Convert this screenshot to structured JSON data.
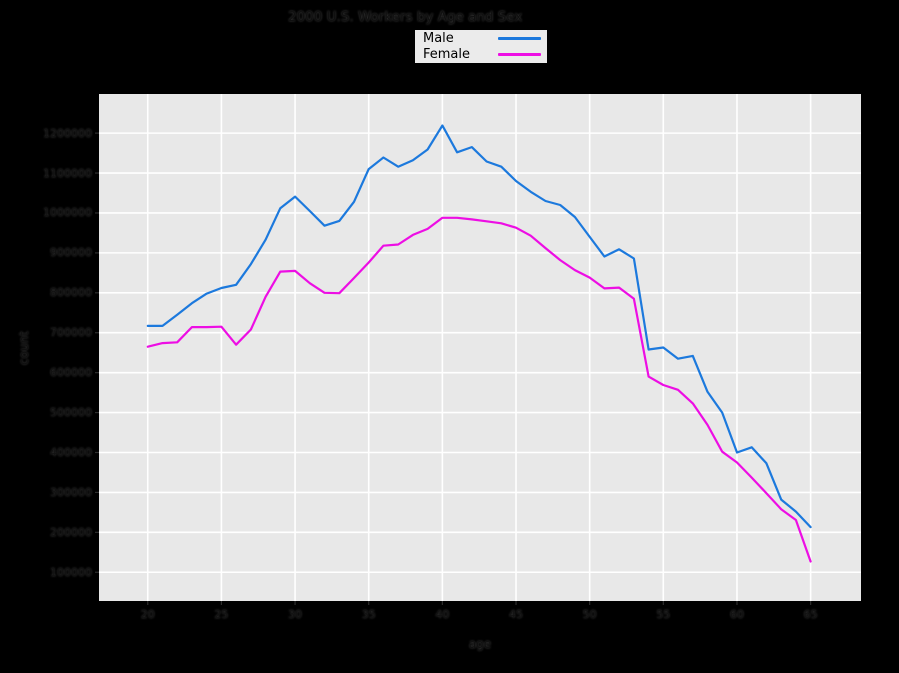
{
  "figure": {
    "title": "2000 U.S. Workers by Age and Sex",
    "background_color": "#000000",
    "panel_color": "#e8e8e8",
    "gridline_color": "#ffffff",
    "text_color": "#101010"
  },
  "legend": {
    "items": [
      {
        "label": "Male",
        "color": "#1c79dd"
      },
      {
        "label": "Female",
        "color": "#ed0ee4"
      }
    ]
  },
  "chart_data": {
    "type": "line",
    "title": "2000 U.S. Workers by Age and Sex",
    "xlabel": "age",
    "ylabel": "count",
    "x": [
      20,
      21,
      22,
      23,
      24,
      25,
      26,
      27,
      28,
      29,
      30,
      31,
      32,
      33,
      34,
      35,
      36,
      37,
      38,
      39,
      40,
      41,
      42,
      43,
      44,
      45,
      46,
      47,
      48,
      49,
      50,
      51,
      52,
      53,
      54,
      55,
      56,
      57,
      58,
      59,
      60,
      61,
      62,
      63,
      64,
      65
    ],
    "series": [
      {
        "name": "Male",
        "color": "#1c79dd",
        "values": [
          717000,
          717000,
          745000,
          774000,
          798000,
          812000,
          820000,
          872000,
          933000,
          1012000,
          1041000,
          1005000,
          968000,
          980000,
          1028000,
          1110000,
          1139000,
          1116000,
          1132000,
          1159000,
          1219000,
          1152000,
          1165000,
          1129000,
          1116000,
          1080000,
          1053000,
          1030000,
          1020000,
          990000,
          940000,
          891000,
          909000,
          886000,
          658000,
          663000,
          635000,
          642000,
          552000,
          500000,
          400000,
          413000,
          373000,
          282000,
          252000,
          213000
        ]
      },
      {
        "name": "Female",
        "color": "#ed0ee4",
        "values": [
          665000,
          674000,
          676000,
          714000,
          714000,
          715000,
          670000,
          708000,
          790000,
          853000,
          855000,
          824000,
          800000,
          799000,
          837000,
          876000,
          918000,
          921000,
          945000,
          960000,
          988000,
          988000,
          984000,
          979000,
          974000,
          963000,
          943000,
          912000,
          882000,
          857000,
          838000,
          811000,
          813000,
          785000,
          590000,
          569000,
          557000,
          523000,
          469000,
          402000,
          375000,
          337000,
          298000,
          258000,
          231000,
          127000
        ]
      }
    ],
    "xticks": [
      20,
      25,
      30,
      35,
      40,
      45,
      50,
      55,
      60,
      65
    ],
    "yticks": [
      100000,
      200000,
      300000,
      400000,
      500000,
      600000,
      700000,
      800000,
      900000,
      1000000,
      1100000,
      1200000
    ],
    "xlim": [
      16.69,
      68.42
    ],
    "ylim": [
      28000,
      1298000
    ],
    "grid": true,
    "legend_position": "top-center"
  }
}
